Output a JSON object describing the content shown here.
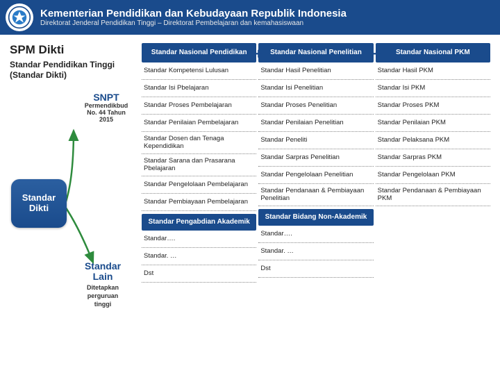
{
  "header": {
    "title": "Kementerian Pendidikan dan Kebudayaan Republik Indonesia",
    "subtitle": "Direktorat Jenderal Pendidikan Tinggi – Direktorat Pembelajaran dan kemahasiswaan"
  },
  "colors": {
    "primary": "#1a4b8c",
    "arrow_green": "#2e8b3d"
  },
  "left": {
    "page_title": "SPM Dikti",
    "subtitle_line1": "Standar Pendidikan Tinggi",
    "subtitle_line2": "(Standar Dikti)",
    "snpt": {
      "title": "SNPT",
      "sub1": "Permendikbud",
      "sub2": "No. 44 Tahun",
      "sub3": "2015"
    },
    "dikti_box": "Standar Dikti",
    "lain": {
      "title1": "Standar",
      "title2": "Lain",
      "sub1": "Ditetapkan",
      "sub2": "perguruan",
      "sub3": "tinggi"
    }
  },
  "columns": [
    {
      "head": "Standar Nasional Pendidikan",
      "items": [
        "Standar Kompetensi Lulusan",
        "Standar Isi Pbelajaran",
        "Standar Proses Pembelajaran",
        "Standar Penilaian Pembelajaran",
        "Standar Dosen dan Tenaga Kependidikan",
        "Standar Sarana dan Prasarana Pbelajaran",
        "Standar Pengelolaan Pembelajaran",
        "Standar Pembiayaan Pembelajaran"
      ],
      "sub_head": "Standar Pengabdian Akademik",
      "tail": [
        "Standar….",
        "Standar. …",
        "Dst"
      ]
    },
    {
      "head": "Standar Nasional Penelitian",
      "items": [
        "Standar Hasil Penelitian",
        "Standar Isi Penelitian",
        "Standar Proses Penelitian",
        "Standar Penilaian Penelitian",
        "Standar Peneliti",
        "Standar Sarpras Penelitian",
        "Standar Pengelolaan Penelitian",
        "Standar Pendanaan & Pembiayaan Penelitian"
      ],
      "sub_head": "Standar Bidang Non-Akademik",
      "tail": [
        "Standar….",
        "Standar. …",
        "Dst"
      ]
    },
    {
      "head": "Standar Nasional PKM",
      "items": [
        "Standar Hasil PKM",
        "Standar Isi PKM",
        "Standar Proses PKM",
        "Standar Penilaian PKM",
        "Standar Pelaksana PKM",
        "Standar Sarpras PKM",
        "Standar Pengelolaan PKM",
        "Standar Pendanaan & Pembiayaan PKM"
      ],
      "sub_head": null,
      "tail": []
    }
  ],
  "plus": "+"
}
